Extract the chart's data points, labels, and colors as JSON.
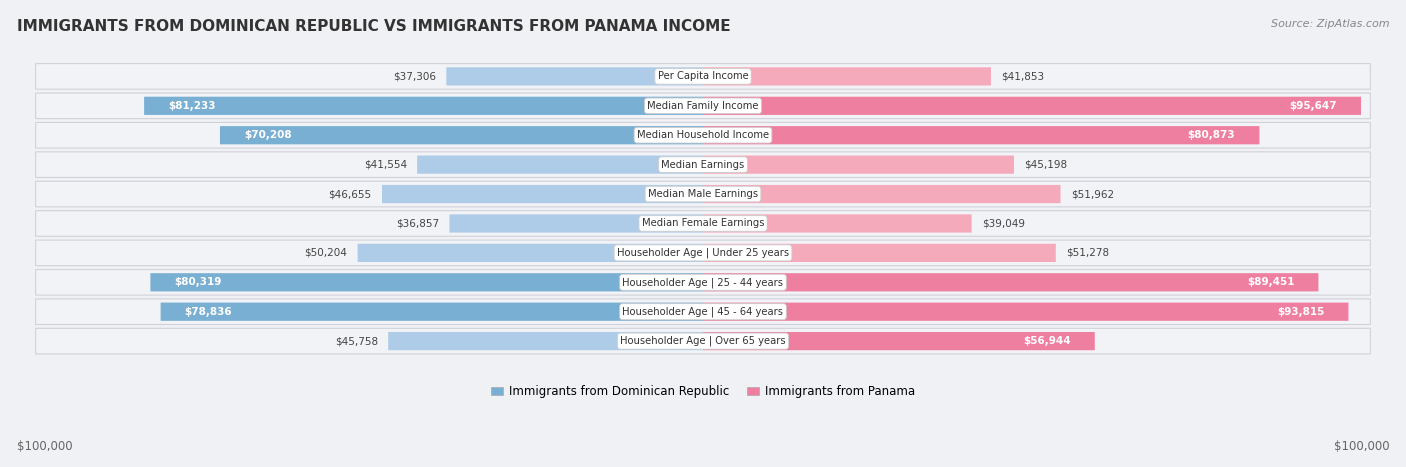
{
  "title": "IMMIGRANTS FROM DOMINICAN REPUBLIC VS IMMIGRANTS FROM PANAMA INCOME",
  "source": "Source: ZipAtlas.com",
  "categories": [
    "Per Capita Income",
    "Median Family Income",
    "Median Household Income",
    "Median Earnings",
    "Median Male Earnings",
    "Median Female Earnings",
    "Householder Age | Under 25 years",
    "Householder Age | 25 - 44 years",
    "Householder Age | 45 - 64 years",
    "Householder Age | Over 65 years"
  ],
  "dominican": [
    37306,
    81233,
    70208,
    41554,
    46655,
    36857,
    50204,
    80319,
    78836,
    45758
  ],
  "panama": [
    41853,
    95647,
    80873,
    45198,
    51962,
    39049,
    51278,
    89451,
    93815,
    56944
  ],
  "dominican_labels": [
    "$37,306",
    "$81,233",
    "$70,208",
    "$41,554",
    "$46,655",
    "$36,857",
    "$50,204",
    "$80,319",
    "$78,836",
    "$45,758"
  ],
  "panama_labels": [
    "$41,853",
    "$95,647",
    "$80,873",
    "$45,198",
    "$51,962",
    "$39,049",
    "$51,278",
    "$89,451",
    "$93,815",
    "$56,944"
  ],
  "max_value": 100000,
  "bar_height": 0.62,
  "color_dominican": "#7AAFD4",
  "color_panama": "#EF7FA0",
  "color_dominican_light": "#AECCE8",
  "color_panama_light": "#F5AABB",
  "row_bg": "#ECEEF2",
  "row_inner_bg": "#F7F8FA",
  "legend_label_dominican": "Immigrants from Dominican Republic",
  "legend_label_panama": "Immigrants from Panama",
  "xlabel_left": "$100,000",
  "xlabel_right": "$100,000",
  "label_inside_threshold": 55000,
  "label_inside_color": "#ffffff",
  "label_outside_color": "#555555"
}
